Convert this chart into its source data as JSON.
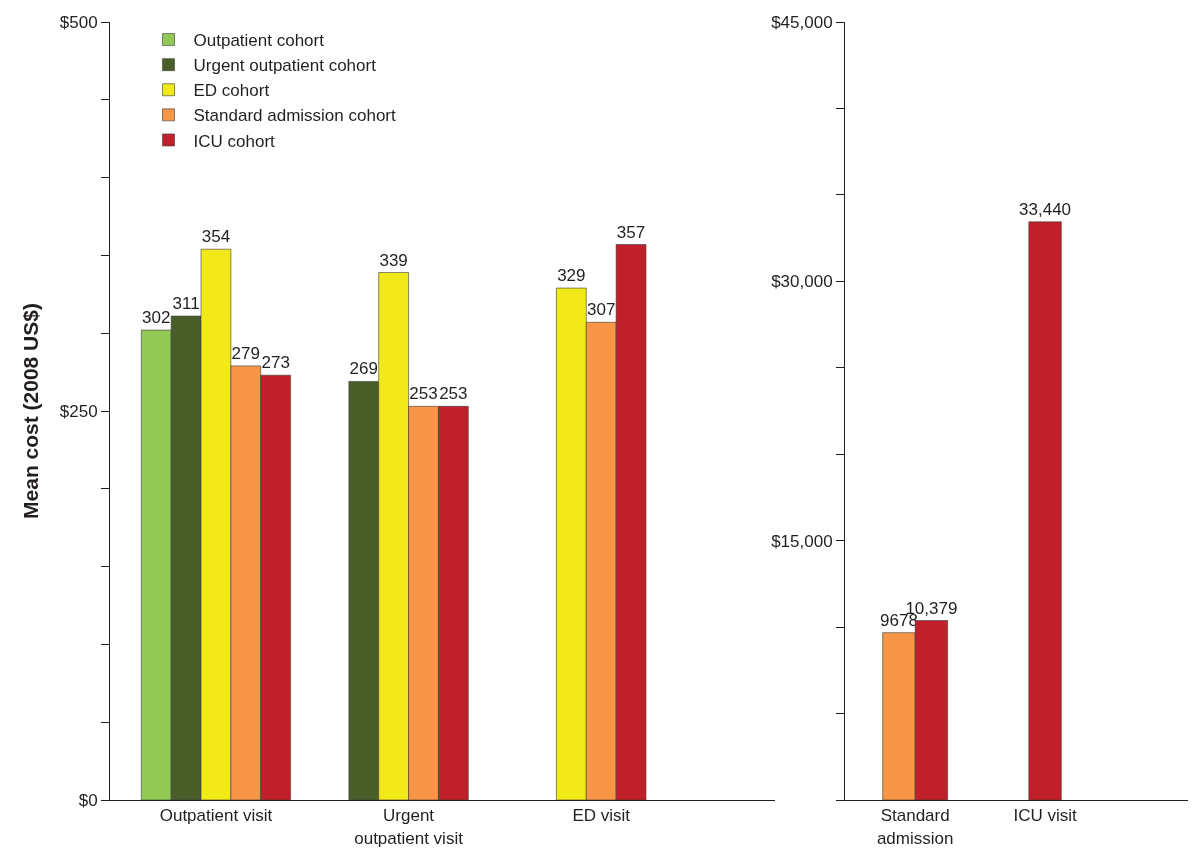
{
  "chart_data": [
    {
      "type": "bar",
      "ylabel": "Mean cost (2008 US$)",
      "categories": [
        "Outpatient visit",
        "Urgent outpatient visit",
        "ED visit"
      ],
      "series": [
        {
          "name": "Outpatient cohort",
          "color": "#92c955",
          "values": [
            302,
            null,
            null
          ]
        },
        {
          "name": "Urgent outpatient cohort",
          "color": "#4a5e2a",
          "values": [
            311,
            269,
            null
          ]
        },
        {
          "name": "ED cohort",
          "color": "#f2e91a",
          "values": [
            354,
            339,
            329
          ]
        },
        {
          "name": "Standard admission cohort",
          "color": "#f79646",
          "values": [
            279,
            253,
            307
          ]
        },
        {
          "name": "ICU cohort",
          "color": "#c0202a",
          "values": [
            273,
            253,
            357
          ]
        }
      ],
      "ylim": [
        0,
        500
      ],
      "yticks": [
        {
          "value": 0,
          "label": "$0"
        },
        {
          "value": 50,
          "label": null
        },
        {
          "value": 100,
          "label": null
        },
        {
          "value": 150,
          "label": null
        },
        {
          "value": 200,
          "label": null
        },
        {
          "value": 250,
          "label": "$250"
        },
        {
          "value": 300,
          "label": null
        },
        {
          "value": 350,
          "label": null
        },
        {
          "value": 400,
          "label": null
        },
        {
          "value": 450,
          "label": null
        },
        {
          "value": 500,
          "label": "$500"
        }
      ],
      "data_labels": true,
      "legend": "top left"
    },
    {
      "type": "bar",
      "categories": [
        "Standard admission",
        "ICU visit"
      ],
      "series": [
        {
          "color": "#f79646",
          "values": [
            9678,
            null
          ],
          "value_labels": [
            "9678",
            null
          ]
        },
        {
          "color": "#c0202a",
          "values": [
            10379,
            33440
          ],
          "value_labels": [
            "10,379",
            "33,440"
          ]
        }
      ],
      "ylim": [
        0,
        45000
      ],
      "yticks": [
        {
          "value": 0,
          "label": null
        },
        {
          "value": 5000,
          "label": null
        },
        {
          "value": 10000,
          "label": null
        },
        {
          "value": 15000,
          "label": "$15,000"
        },
        {
          "value": 20000,
          "label": null
        },
        {
          "value": 25000,
          "label": null
        },
        {
          "value": 30000,
          "label": "$30,000"
        },
        {
          "value": 35000,
          "label": null
        },
        {
          "value": 40000,
          "label": null
        },
        {
          "value": 45000,
          "label": "$45,000"
        }
      ]
    }
  ]
}
